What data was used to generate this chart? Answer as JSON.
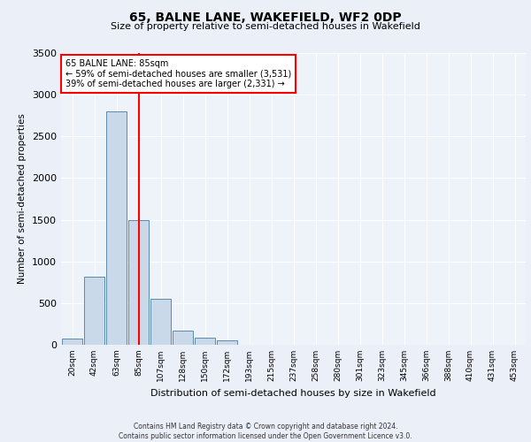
{
  "title1": "65, BALNE LANE, WAKEFIELD, WF2 0DP",
  "title2": "Size of property relative to semi-detached houses in Wakefield",
  "xlabel": "Distribution of semi-detached houses by size in Wakefield",
  "ylabel": "Number of semi-detached properties",
  "footer1": "Contains HM Land Registry data © Crown copyright and database right 2024.",
  "footer2": "Contains public sector information licensed under the Open Government Licence v3.0.",
  "annotation_title": "65 BALNE LANE: 85sqm",
  "annotation_line1": "← 59% of semi-detached houses are smaller (3,531)",
  "annotation_line2": "39% of semi-detached houses are larger (2,331) →",
  "bar_color": "#c9d9ea",
  "bar_edge_color": "#5a8aaa",
  "vline_color": "red",
  "categories": [
    "20sqm",
    "42sqm",
    "63sqm",
    "85sqm",
    "107sqm",
    "128sqm",
    "150sqm",
    "172sqm",
    "193sqm",
    "215sqm",
    "237sqm",
    "258sqm",
    "280sqm",
    "301sqm",
    "323sqm",
    "345sqm",
    "366sqm",
    "388sqm",
    "410sqm",
    "431sqm",
    "453sqm"
  ],
  "values": [
    70,
    820,
    2800,
    1500,
    550,
    175,
    80,
    50,
    0,
    0,
    0,
    0,
    0,
    0,
    0,
    0,
    0,
    0,
    0,
    0,
    0
  ],
  "ylim": [
    0,
    3500
  ],
  "yticks": [
    0,
    500,
    1000,
    1500,
    2000,
    2500,
    3000,
    3500
  ],
  "vline_x_index": 3,
  "bg_color": "#eaeff8",
  "plot_bg_color": "#eef3fa"
}
